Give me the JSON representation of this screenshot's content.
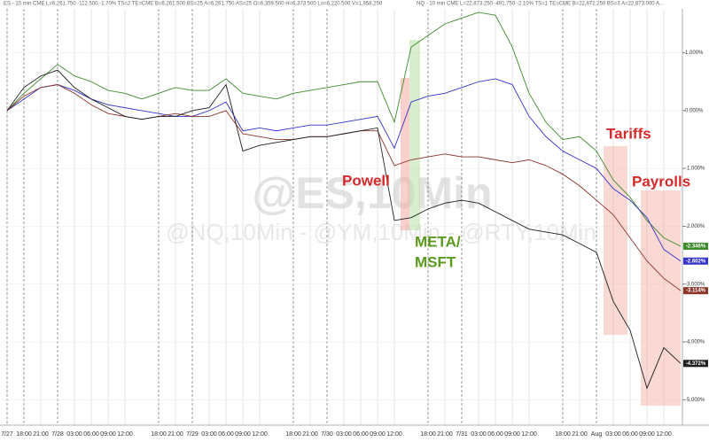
{
  "chart_data": {
    "type": "line",
    "header": [
      "ES - 10 min  CME  L=6,261.750  -112.500  -1.70%  TS=2  TE=CME  B=6,261.500  BS=25  A=6,261.750  AS=25  O=6,359.500  H=6,373.500  Lo=6,220.500  V=1,958,250",
      "NQ - 10 min  CME  L=22,873.250  -491.750  -2.10%  TS=1  TE=CME  B=22,872.250  BS=3  A=22,873.000  A..."
    ],
    "watermark": "@ES,10Min",
    "subwatermark": "@NQ,10Min - @YM,10Min - @RTY,10Min",
    "categories": [
      "7/27",
      "18:00",
      "21:00",
      "7/28",
      "03:00",
      "06:00",
      "09:00",
      "12:00",
      null,
      "18:00",
      "21:00",
      "7/29",
      "03:00",
      "06:00",
      "09:00",
      "12:00",
      null,
      "18:00",
      "21:00",
      "7/30",
      "03:00",
      "06:00",
      "09:00",
      "12:00",
      null,
      "18:00",
      "21:00",
      "7/31",
      "03:00",
      "06:00",
      "09:00",
      "12:00",
      null,
      "18:00",
      "21:00",
      "Aug",
      "03:00",
      "06:00",
      "09:00",
      "12:00",
      null
    ],
    "series": [
      {
        "name": "NQ",
        "color": "#3f8a2c",
        "values": [
          0,
          0.3,
          0.55,
          0.8,
          0.6,
          0.5,
          0.35,
          0.3,
          0.2,
          0.3,
          0.4,
          0.35,
          0.35,
          0.55,
          0.3,
          0.25,
          0.2,
          0.3,
          0.35,
          0.4,
          0.45,
          0.5,
          0.5,
          -0.2,
          1.1,
          1.3,
          1.5,
          1.6,
          1.7,
          1.65,
          1.1,
          0.3,
          -0.2,
          -0.5,
          -0.45,
          -0.7,
          -1.2,
          -1.5,
          -1.9,
          -2.2,
          -2.346
        ],
        "value_labels": [
          null,
          null,
          null,
          null,
          null,
          null,
          null,
          null,
          null,
          null,
          null,
          null,
          null,
          null,
          null,
          null,
          null,
          null,
          null,
          null,
          null,
          null,
          null,
          null,
          null,
          null,
          null,
          null,
          null,
          null,
          null,
          null,
          null,
          null,
          null,
          null,
          null,
          null,
          null,
          null,
          "-2.346%"
        ]
      },
      {
        "name": "ES",
        "color": "#3434c8",
        "values": [
          0,
          0.2,
          0.4,
          0.45,
          0.35,
          0.2,
          0.1,
          0.05,
          0,
          -0.05,
          -0.1,
          -0.1,
          0,
          0.15,
          -0.35,
          -0.3,
          -0.35,
          -0.3,
          -0.25,
          -0.25,
          -0.2,
          -0.15,
          -0.1,
          -0.65,
          0.15,
          0.25,
          0.3,
          0.4,
          0.5,
          0.55,
          0.45,
          -0.1,
          -0.45,
          -0.7,
          -0.85,
          -1,
          -1.35,
          -1.55,
          -1.85,
          -2.4,
          -2.602
        ],
        "value_labels": [
          null,
          null,
          null,
          null,
          null,
          null,
          null,
          null,
          null,
          null,
          null,
          null,
          null,
          null,
          null,
          null,
          null,
          null,
          null,
          null,
          null,
          null,
          null,
          null,
          null,
          null,
          null,
          null,
          null,
          null,
          null,
          null,
          null,
          null,
          null,
          null,
          null,
          null,
          null,
          null,
          "-2.602%"
        ]
      },
      {
        "name": "YM",
        "color": "#8b3528",
        "values": [
          0,
          0.25,
          0.4,
          0.45,
          0.3,
          0.1,
          -0.05,
          -0.1,
          -0.15,
          -0.1,
          -0.05,
          -0.1,
          -0.1,
          0,
          -0.4,
          -0.45,
          -0.5,
          -0.5,
          -0.45,
          -0.45,
          -0.4,
          -0.35,
          -0.35,
          -0.95,
          -0.85,
          -0.8,
          -0.75,
          -0.8,
          -0.8,
          -0.85,
          -0.9,
          -0.85,
          -0.95,
          -1.1,
          -1.3,
          -1.55,
          -1.8,
          -2.2,
          -2.6,
          -2.9,
          -3.114
        ],
        "value_labels": [
          null,
          null,
          null,
          null,
          null,
          null,
          null,
          null,
          null,
          null,
          null,
          null,
          null,
          null,
          null,
          null,
          null,
          null,
          null,
          null,
          null,
          null,
          null,
          null,
          null,
          null,
          null,
          null,
          null,
          null,
          null,
          null,
          null,
          null,
          null,
          null,
          null,
          null,
          null,
          null,
          "-3.114%"
        ]
      },
      {
        "name": "RTY",
        "color": "#1e1e1e",
        "values": [
          0,
          0.4,
          0.6,
          0.7,
          0.4,
          0.2,
          0.05,
          -0.1,
          -0.15,
          -0.1,
          -0.1,
          0,
          0.05,
          0.45,
          -0.7,
          -0.6,
          -0.55,
          -0.5,
          -0.45,
          -0.45,
          -0.4,
          -0.35,
          -0.3,
          -1.9,
          -1.85,
          -1.7,
          -1.6,
          -1.55,
          -1.6,
          -1.75,
          -1.9,
          -2.05,
          -2.1,
          -2.15,
          -2.3,
          -2.45,
          -3.3,
          -3.8,
          -4.8,
          -4.1,
          -4.372
        ],
        "value_labels": [
          null,
          null,
          null,
          null,
          null,
          null,
          null,
          null,
          null,
          null,
          null,
          null,
          null,
          null,
          null,
          null,
          null,
          null,
          null,
          null,
          null,
          null,
          null,
          null,
          null,
          null,
          null,
          null,
          null,
          null,
          null,
          null,
          null,
          null,
          null,
          null,
          null,
          null,
          null,
          null,
          "-4.372%"
        ]
      }
    ],
    "ylim": [
      -5.44,
      1.76
    ],
    "yticks": [
      {
        "value": 1,
        "label": "1.000%"
      },
      {
        "value": 0,
        "label": "0.000%"
      },
      {
        "value": -1,
        "label": "-1.000%"
      },
      {
        "value": -2,
        "label": "-2.000%"
      },
      {
        "value": -3,
        "label": "-3.000%"
      },
      {
        "value": -4,
        "label": "-4.000%"
      },
      {
        "value": -5,
        "label": "-5.000%"
      }
    ],
    "grid": true,
    "annotations": [
      {
        "text": "Powell",
        "color": "#d42a2a"
      },
      {
        "text": "META/",
        "color": "#5a9a1e"
      },
      {
        "text": "MSFT",
        "color": "#5a9a1e"
      },
      {
        "text": "Tariffs",
        "color": "#d42a2a"
      },
      {
        "text": "Payrolls",
        "color": "#d42a2a"
      }
    ]
  }
}
